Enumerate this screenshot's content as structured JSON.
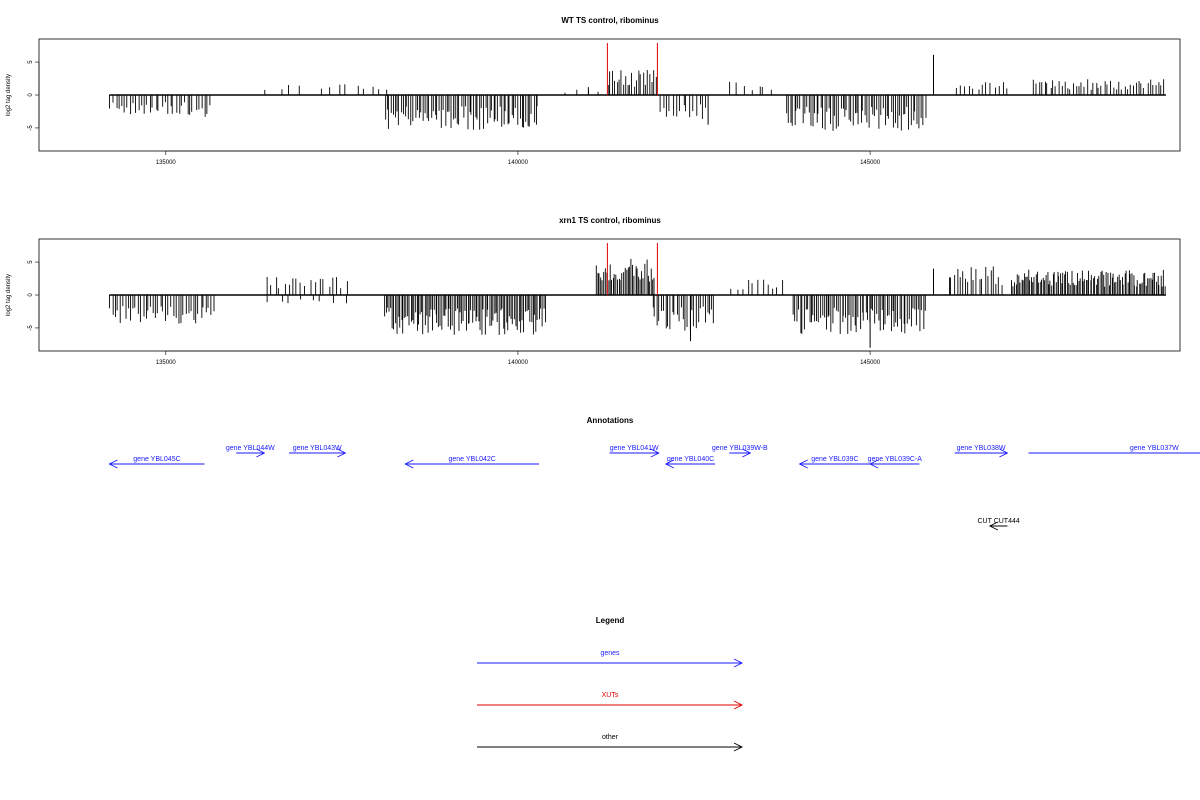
{
  "colors": {
    "gene": "#1a1aff",
    "xut": "#e00000",
    "other": "#000000",
    "signal": "#000000"
  },
  "chart_data": [
    {
      "type": "bar",
      "title": "WT TS control, ribominus",
      "ylabel": "log2 tag density",
      "xlim": [
        133200,
        149400
      ],
      "ylim": [
        -8.5,
        8.5
      ],
      "xticks": [
        135000,
        140000,
        145000
      ],
      "xtick_labels": [
        "135000",
        "140000",
        "145000"
      ],
      "yticks": [
        5,
        0,
        -5
      ],
      "ytick_labels": [
        "5",
        "0",
        "-5"
      ],
      "markers": [
        141270,
        141980
      ],
      "baseline": [
        134200,
        149200
      ],
      "segments": [
        {
          "start": 134200,
          "end": 135650,
          "sign": -1,
          "amp": 3.0,
          "density": 14
        },
        {
          "start": 136400,
          "end": 137000,
          "sign": 1,
          "amp": 2.0,
          "density": 4
        },
        {
          "start": 137200,
          "end": 138200,
          "sign": 1,
          "amp": 1.5,
          "density": 5
        },
        {
          "start": 138100,
          "end": 140300,
          "sign": -1,
          "amp": 4.8,
          "density": 20
        },
        {
          "start": 140600,
          "end": 141270,
          "sign": 1,
          "amp": 1.0,
          "density": 3
        },
        {
          "start": 141270,
          "end": 141980,
          "sign": 1,
          "amp": 3.5,
          "density": 18
        },
        {
          "start": 142000,
          "end": 142700,
          "sign": -1,
          "amp": 3.5,
          "density": 12
        },
        {
          "start": 143000,
          "end": 143650,
          "sign": 1,
          "amp": 2.0,
          "density": 6
        },
        {
          "start": 143800,
          "end": 145800,
          "sign": -1,
          "amp": 5.0,
          "density": 20
        },
        {
          "start": 146200,
          "end": 147000,
          "sign": 1,
          "amp": 2.0,
          "density": 9
        },
        {
          "start": 147300,
          "end": 149200,
          "sign": 1,
          "amp": 2.2,
          "density": 14
        }
      ],
      "spikes": [
        [
          145900,
          6.1
        ],
        [
          142700,
          -4.5
        ],
        [
          141000,
          1.2
        ]
      ]
    },
    {
      "type": "bar",
      "title": "xrn1 TS control, ribominus",
      "ylabel": "log2 tag density",
      "xlim": [
        133200,
        149400
      ],
      "ylim": [
        -8.5,
        8.5
      ],
      "xticks": [
        135000,
        140000,
        145000
      ],
      "xtick_labels": [
        "135000",
        "140000",
        "145000"
      ],
      "yticks": [
        5,
        0,
        -5
      ],
      "ytick_labels": [
        "5",
        "0",
        "-5"
      ],
      "markers": [
        141270,
        141980
      ],
      "baseline": [
        134200,
        149200
      ],
      "segments": [
        {
          "start": 134200,
          "end": 135700,
          "sign": -1,
          "amp": 4.0,
          "density": 16
        },
        {
          "start": 136400,
          "end": 137600,
          "sign": 1,
          "amp": 2.5,
          "density": 9
        },
        {
          "start": 136400,
          "end": 137600,
          "sign": -1,
          "amp": 1.2,
          "density": 4
        },
        {
          "start": 138100,
          "end": 140400,
          "sign": -1,
          "amp": 5.5,
          "density": 26
        },
        {
          "start": 141100,
          "end": 141950,
          "sign": 1,
          "amp": 5.0,
          "density": 26
        },
        {
          "start": 141900,
          "end": 142800,
          "sign": -1,
          "amp": 5.0,
          "density": 18
        },
        {
          "start": 143000,
          "end": 143800,
          "sign": 1,
          "amp": 2.2,
          "density": 8
        },
        {
          "start": 143900,
          "end": 145800,
          "sign": -1,
          "amp": 5.5,
          "density": 22
        },
        {
          "start": 146100,
          "end": 146900,
          "sign": 1,
          "amp": 4.0,
          "density": 14
        },
        {
          "start": 147000,
          "end": 149200,
          "sign": 1,
          "amp": 3.5,
          "density": 28
        }
      ],
      "spikes": [
        [
          145900,
          4.0
        ],
        [
          145000,
          -8.0
        ],
        [
          142450,
          -7.0
        ]
      ]
    }
  ],
  "annotations": {
    "title": "Annotations",
    "genes": [
      {
        "label": "gene YBL045C",
        "start": 135550,
        "end": 134200,
        "row": 2,
        "kind": "gene"
      },
      {
        "label": "gene YBL044W",
        "start": 136000,
        "end": 136400,
        "row": 1,
        "kind": "gene"
      },
      {
        "label": "gene YBL043W",
        "start": 136750,
        "end": 137550,
        "row": 1,
        "kind": "gene"
      },
      {
        "label": "gene YBL042C",
        "start": 140300,
        "end": 138400,
        "row": 2,
        "kind": "gene"
      },
      {
        "label": "gene YBL041W",
        "start": 141300,
        "end": 142000,
        "row": 1,
        "kind": "gene"
      },
      {
        "label": "gene YBL040C",
        "start": 142800,
        "end": 142100,
        "row": 2,
        "kind": "gene"
      },
      {
        "label": "gene YBL039W-B",
        "start": 143000,
        "end": 143300,
        "row": 1,
        "kind": "gene"
      },
      {
        "label": "gene YBL039C",
        "start": 145000,
        "end": 144000,
        "row": 2,
        "kind": "gene"
      },
      {
        "label": "gene YBL039C-A",
        "start": 145700,
        "end": 145000,
        "row": 2,
        "kind": "gene"
      },
      {
        "label": "gene YBL038W",
        "start": 146200,
        "end": 146950,
        "row": 1,
        "kind": "gene"
      },
      {
        "label": "gene YBL037W",
        "start": 147250,
        "end": 149750,
        "row": 1,
        "kind": "gene"
      },
      {
        "label": "CUT CUT444",
        "start": 146950,
        "end": 146700,
        "row": 3,
        "kind": "other"
      }
    ]
  },
  "legend": {
    "title": "Legend",
    "items": [
      {
        "label": "genes",
        "kind": "gene"
      },
      {
        "label": "XUTs",
        "kind": "xut"
      },
      {
        "label": "other",
        "kind": "other"
      }
    ]
  }
}
